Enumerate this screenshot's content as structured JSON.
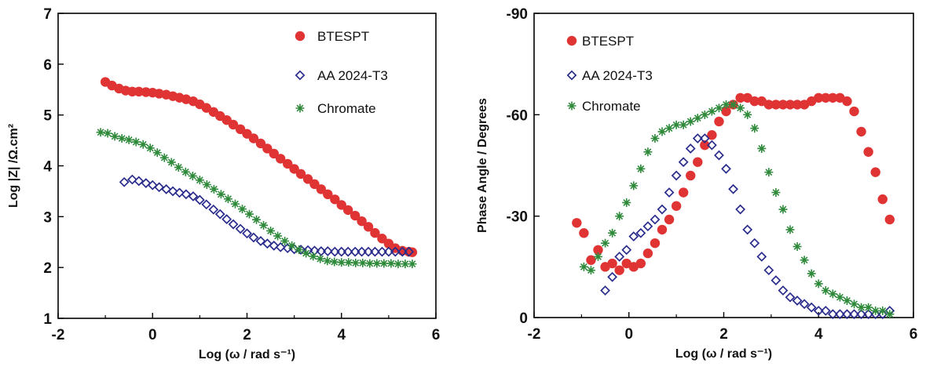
{
  "colors": {
    "BTESPT": "#e03434",
    "AA 2024-T3": "#2a2c8c",
    "Chromate": "#2e8a3a"
  },
  "chart_data": [
    {
      "type": "scatter",
      "title": "",
      "xlabel": "Log (ω / rad s⁻¹)",
      "ylabel": "Log |Z| /Ω.cm²",
      "xlim": [
        -2,
        6
      ],
      "ylim": [
        1,
        7
      ],
      "xticks": [
        -2,
        0,
        2,
        4,
        6
      ],
      "yticks": [
        1,
        2,
        3,
        4,
        5,
        6,
        7
      ],
      "xtick_labels": [
        "-2",
        "0",
        "2",
        "4",
        "6"
      ],
      "ytick_labels": [
        "1",
        "2",
        "3",
        "4",
        "5",
        "6",
        "7"
      ],
      "legend": "top-right",
      "series": [
        {
          "name": "BTESPT",
          "marker": "circle",
          "x": [
            -1.0,
            -0.86,
            -0.71,
            -0.57,
            -0.43,
            -0.29,
            -0.14,
            0.0,
            0.14,
            0.29,
            0.43,
            0.57,
            0.71,
            0.86,
            1.0,
            1.14,
            1.29,
            1.43,
            1.57,
            1.71,
            1.86,
            2.0,
            2.14,
            2.29,
            2.43,
            2.57,
            2.71,
            2.86,
            3.0,
            3.14,
            3.29,
            3.43,
            3.57,
            3.71,
            3.86,
            4.0,
            4.14,
            4.29,
            4.43,
            4.57,
            4.71,
            4.86,
            5.0,
            5.14,
            5.29,
            5.43,
            5.5
          ],
          "y": [
            5.65,
            5.58,
            5.52,
            5.48,
            5.46,
            5.46,
            5.45,
            5.44,
            5.42,
            5.4,
            5.37,
            5.34,
            5.31,
            5.27,
            5.21,
            5.14,
            5.06,
            4.98,
            4.9,
            4.81,
            4.72,
            4.63,
            4.54,
            4.44,
            4.34,
            4.24,
            4.14,
            4.04,
            3.94,
            3.84,
            3.74,
            3.64,
            3.54,
            3.44,
            3.34,
            3.23,
            3.13,
            3.02,
            2.91,
            2.8,
            2.68,
            2.57,
            2.47,
            2.38,
            2.33,
            2.31,
            2.3
          ]
        },
        {
          "name": "AA 2024-T3",
          "marker": "diamond",
          "x": [
            -0.6,
            -0.43,
            -0.29,
            -0.14,
            0.0,
            0.14,
            0.29,
            0.43,
            0.57,
            0.71,
            0.86,
            1.0,
            1.14,
            1.29,
            1.43,
            1.57,
            1.71,
            1.86,
            2.0,
            2.14,
            2.29,
            2.43,
            2.57,
            2.71,
            2.86,
            3.0,
            3.14,
            3.29,
            3.43,
            3.57,
            3.71,
            3.86,
            4.0,
            4.14,
            4.29,
            4.43,
            4.57,
            4.71,
            4.86,
            5.0,
            5.14,
            5.29,
            5.43
          ],
          "y": [
            3.68,
            3.73,
            3.7,
            3.66,
            3.62,
            3.58,
            3.54,
            3.5,
            3.47,
            3.44,
            3.4,
            3.33,
            3.24,
            3.14,
            3.05,
            2.95,
            2.85,
            2.76,
            2.67,
            2.59,
            2.52,
            2.47,
            2.43,
            2.4,
            2.38,
            2.36,
            2.35,
            2.34,
            2.33,
            2.32,
            2.32,
            2.31,
            2.31,
            2.31,
            2.31,
            2.31,
            2.31,
            2.31,
            2.31,
            2.31,
            2.31,
            2.31,
            2.31
          ]
        },
        {
          "name": "Chromate",
          "marker": "asterisk",
          "x": [
            -1.1,
            -0.95,
            -0.8,
            -0.65,
            -0.5,
            -0.35,
            -0.2,
            -0.05,
            0.1,
            0.25,
            0.4,
            0.55,
            0.7,
            0.85,
            1.0,
            1.15,
            1.3,
            1.45,
            1.6,
            1.75,
            1.9,
            2.05,
            2.2,
            2.35,
            2.5,
            2.65,
            2.8,
            2.95,
            3.1,
            3.25,
            3.4,
            3.55,
            3.7,
            3.85,
            4.0,
            4.15,
            4.3,
            4.45,
            4.6,
            4.75,
            4.9,
            5.05,
            5.2,
            5.35,
            5.5
          ],
          "y": [
            4.66,
            4.64,
            4.58,
            4.54,
            4.51,
            4.47,
            4.42,
            4.35,
            4.26,
            4.16,
            4.07,
            3.97,
            3.88,
            3.8,
            3.72,
            3.63,
            3.54,
            3.44,
            3.35,
            3.25,
            3.15,
            3.05,
            2.94,
            2.83,
            2.72,
            2.62,
            2.52,
            2.43,
            2.35,
            2.28,
            2.22,
            2.17,
            2.13,
            2.11,
            2.1,
            2.1,
            2.09,
            2.09,
            2.08,
            2.08,
            2.08,
            2.08,
            2.07,
            2.07,
            2.07
          ]
        }
      ]
    },
    {
      "type": "scatter",
      "title": "",
      "xlabel": "Log (ω / rad s⁻¹)",
      "ylabel": "Phase Angle / Degrees",
      "xlim": [
        -2,
        6
      ],
      "ylim": [
        0,
        -90
      ],
      "xticks": [
        -2,
        0,
        2,
        4,
        6
      ],
      "yticks": [
        0,
        -30,
        -60,
        -90
      ],
      "xtick_labels": [
        "-2",
        "0",
        "2",
        "4",
        "6"
      ],
      "ytick_labels": [
        "0",
        "-30",
        "-60",
        "-90"
      ],
      "legend": "top-left",
      "series": [
        {
          "name": "BTESPT",
          "marker": "circle",
          "x": [
            -1.1,
            -0.95,
            -0.8,
            -0.65,
            -0.5,
            -0.35,
            -0.2,
            -0.05,
            0.1,
            0.25,
            0.4,
            0.55,
            0.7,
            0.85,
            1.0,
            1.15,
            1.3,
            1.45,
            1.6,
            1.75,
            1.9,
            2.05,
            2.2,
            2.35,
            2.5,
            2.65,
            2.8,
            2.95,
            3.1,
            3.25,
            3.4,
            3.55,
            3.7,
            3.85,
            4.0,
            4.15,
            4.3,
            4.45,
            4.6,
            4.75,
            4.9,
            5.05,
            5.2,
            5.35,
            5.5
          ],
          "y": [
            -28,
            -25,
            -17,
            -20,
            -15,
            -16,
            -14,
            -16,
            -15,
            -16,
            -19,
            -22,
            -26,
            -29,
            -33,
            -37,
            -42,
            -46,
            -51,
            -54,
            -58,
            -61,
            -63,
            -65,
            -65,
            -64,
            -64,
            -63,
            -63,
            -63,
            -63,
            -63,
            -63,
            -64,
            -65,
            -65,
            -65,
            -65,
            -64,
            -61,
            -55,
            -49,
            -43,
            -35,
            -29
          ]
        },
        {
          "name": "AA 2024-T3",
          "marker": "diamond",
          "x": [
            -0.5,
            -0.35,
            -0.2,
            -0.05,
            0.1,
            0.25,
            0.4,
            0.55,
            0.7,
            0.85,
            1.0,
            1.15,
            1.3,
            1.45,
            1.6,
            1.75,
            1.9,
            2.05,
            2.2,
            2.35,
            2.5,
            2.65,
            2.8,
            2.95,
            3.1,
            3.25,
            3.4,
            3.55,
            3.7,
            3.85,
            4.0,
            4.15,
            4.3,
            4.45,
            4.6,
            4.75,
            4.9,
            5.05,
            5.2,
            5.35,
            5.5
          ],
          "y": [
            -8,
            -12,
            -18,
            -20,
            -24,
            -25,
            -27,
            -29,
            -32,
            -37,
            -42,
            -46,
            -50,
            -53,
            -53,
            -51,
            -48,
            -44,
            -38,
            -32,
            -26,
            -22,
            -18,
            -14,
            -11,
            -8,
            -6,
            -5,
            -4,
            -3,
            -2,
            -2,
            -1,
            -1,
            -1,
            -1,
            -1,
            -1,
            -1,
            -1,
            -2
          ]
        },
        {
          "name": "Chromate",
          "marker": "asterisk",
          "x": [
            -0.95,
            -0.8,
            -0.65,
            -0.5,
            -0.35,
            -0.2,
            -0.05,
            0.1,
            0.25,
            0.4,
            0.55,
            0.7,
            0.85,
            1.0,
            1.15,
            1.3,
            1.45,
            1.6,
            1.75,
            1.9,
            2.05,
            2.2,
            2.35,
            2.5,
            2.65,
            2.8,
            2.95,
            3.1,
            3.25,
            3.4,
            3.55,
            3.7,
            3.85,
            4.0,
            4.15,
            4.3,
            4.45,
            4.6,
            4.75,
            4.9,
            5.05,
            5.2,
            5.35,
            5.5
          ],
          "y": [
            -15,
            -14,
            -18,
            -22,
            -25,
            -30,
            -34,
            -39,
            -44,
            -49,
            -53,
            -55,
            -56,
            -57,
            -57,
            -58,
            -59,
            -60,
            -61,
            -62,
            -63,
            -63,
            -62,
            -60,
            -56,
            -50,
            -43,
            -37,
            -32,
            -26,
            -21,
            -17,
            -13,
            -10,
            -8,
            -7,
            -6,
            -5,
            -4,
            -3,
            -3,
            -2,
            -2,
            -1
          ]
        }
      ]
    }
  ]
}
